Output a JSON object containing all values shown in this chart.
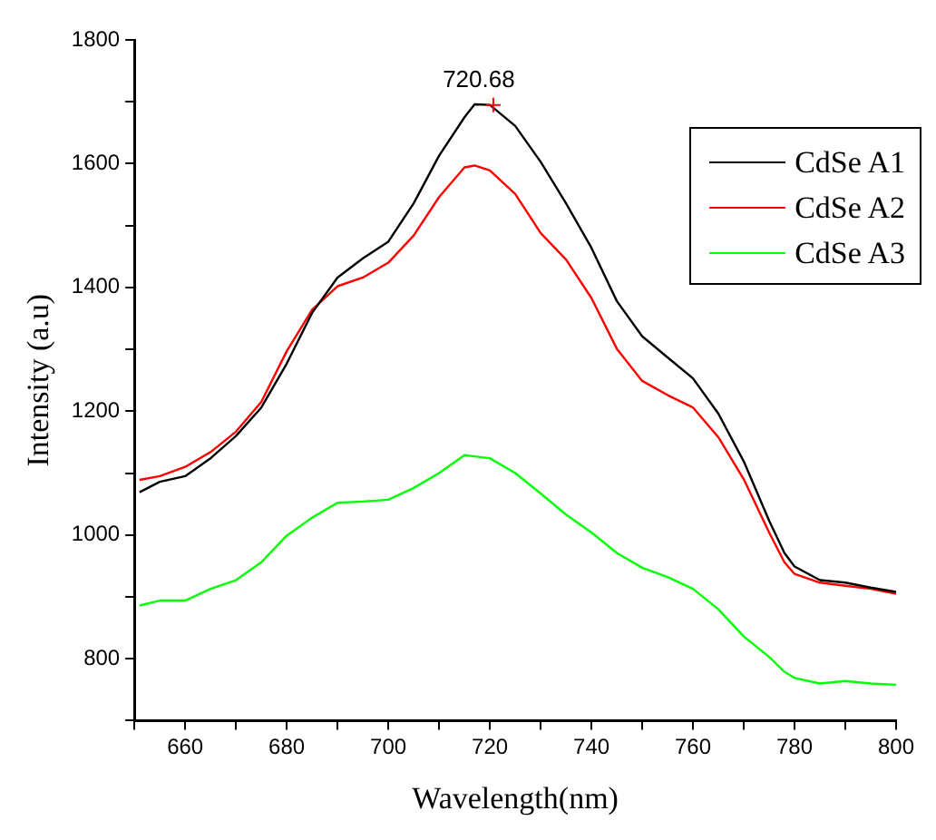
{
  "chart_data": {
    "type": "line",
    "xlabel": "Wavelength(nm)",
    "ylabel": "Intensity (a.u)",
    "xlim": [
      650,
      800
    ],
    "ylim": [
      700,
      1800
    ],
    "xticks": [
      {
        "value": 650,
        "label": null
      },
      660,
      {
        "value": 670,
        "label": null
      },
      680,
      {
        "value": 690,
        "label": null
      },
      700,
      {
        "value": 710,
        "label": null
      },
      720,
      {
        "value": 730,
        "label": null
      },
      740,
      {
        "value": 750,
        "label": null
      },
      760,
      {
        "value": 770,
        "label": null
      },
      780,
      {
        "value": 790,
        "label": null
      },
      800
    ],
    "yticks": [
      {
        "value": 700,
        "label": null
      },
      800,
      {
        "value": 900,
        "label": null
      },
      1000,
      {
        "value": 1100,
        "label": null
      },
      1200,
      {
        "value": 1300,
        "label": null
      },
      1400,
      {
        "value": 1500,
        "label": null
      },
      1600,
      {
        "value": 1700,
        "label": null
      },
      1800
    ],
    "grid": false,
    "legend": "top right",
    "marker": "none",
    "line_style": "solid",
    "annotations": [
      {
        "text": "720.68",
        "x": 720.68,
        "y": 1695
      }
    ],
    "x": [
      651,
      655,
      660,
      665,
      670,
      675,
      680,
      685,
      690,
      695,
      700,
      705,
      710,
      715,
      717,
      720,
      725,
      730,
      735,
      740,
      745,
      750,
      755,
      760,
      765,
      770,
      775,
      778,
      780,
      785,
      790,
      795,
      800
    ],
    "series": [
      {
        "name": "CdSe A1",
        "color": "#000000",
        "values": [
          1069,
          1086,
          1095,
          1124,
          1160,
          1206,
          1277,
          1359,
          1416,
          1447,
          1474,
          1536,
          1613,
          1675,
          1696,
          1695,
          1661,
          1603,
          1536,
          1464,
          1378,
          1321,
          1287,
          1253,
          1196,
          1119,
          1023,
          971,
          949,
          927,
          923,
          915,
          908
        ]
      },
      {
        "name": "CdSe A2",
        "color": "#ff0000",
        "values": [
          1089,
          1095,
          1110,
          1134,
          1167,
          1215,
          1297,
          1364,
          1402,
          1416,
          1440,
          1484,
          1546,
          1594,
          1597,
          1589,
          1551,
          1488,
          1445,
          1383,
          1301,
          1249,
          1226,
          1206,
          1158,
          1090,
          1004,
          956,
          937,
          923,
          918,
          913,
          905
        ]
      },
      {
        "name": "CdSe A3",
        "color": "#00ff00",
        "values": [
          886,
          894,
          894,
          913,
          927,
          956,
          999,
          1028,
          1052,
          1054,
          1057,
          1076,
          1100,
          1129,
          1127,
          1124,
          1100,
          1067,
          1033,
          1004,
          971,
          947,
          932,
          913,
          880,
          836,
          803,
          779,
          769,
          760,
          764,
          760,
          758
        ]
      }
    ]
  }
}
